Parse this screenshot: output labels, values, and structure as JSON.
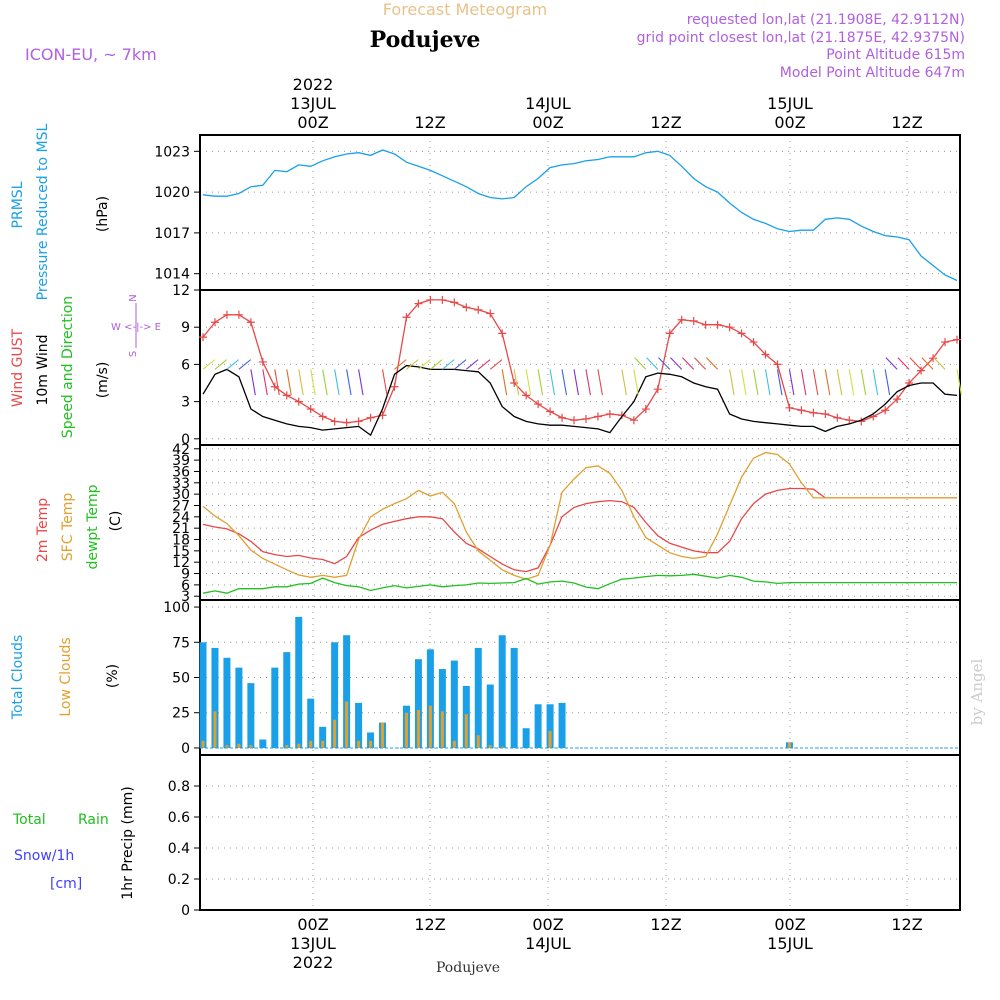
{
  "header": {
    "title": "Forecast Meteogram",
    "location": "Podujeve",
    "model": "ICON-EU, ~ 7km",
    "requested": "requested lon,lat (21.1908E, 42.9112N)",
    "gridpoint": "grid point closest lon,lat (21.1875E, 42.9375N)",
    "point_altitude": "Point Altitude 615m",
    "model_altitude": "Model Point Altitude 647m",
    "footer_location": "Podujeve",
    "watermark": "by Angel",
    "colors": {
      "title": "#e8c28a",
      "model": "#b060e0",
      "pressure": "#1aa0e8",
      "gust": "#e84848",
      "wind": "#000000",
      "dir": "#20c020",
      "sfc": "#e0a030",
      "temp": "#e84848",
      "dew": "#20c020",
      "total_cloud": "#1aa0e8",
      "low_cloud": "#e0a030",
      "rain": "#20c020",
      "snow": "#4040ff"
    }
  },
  "time_axis": {
    "top_labels": [
      {
        "pos": 0.15,
        "lines": [
          "2022",
          "13JUL",
          "00Z"
        ]
      },
      {
        "pos": 0.31,
        "lines": [
          "12Z"
        ]
      },
      {
        "pos": 0.46,
        "lines": [
          "14JUL",
          "00Z"
        ]
      },
      {
        "pos": 0.62,
        "lines": [
          "12Z"
        ]
      },
      {
        "pos": 0.78,
        "lines": [
          "15JUL",
          "00Z"
        ]
      },
      {
        "pos": 0.93,
        "lines": [
          "12Z"
        ]
      }
    ],
    "bottom_labels": [
      {
        "pos": 0.15,
        "lines": [
          "00Z",
          "13JUL",
          "2022"
        ]
      },
      {
        "pos": 0.31,
        "lines": [
          "12Z"
        ]
      },
      {
        "pos": 0.46,
        "lines": [
          "00Z",
          "14JUL"
        ]
      },
      {
        "pos": 0.62,
        "lines": [
          "12Z"
        ]
      },
      {
        "pos": 0.78,
        "lines": [
          "00Z",
          "15JUL"
        ]
      },
      {
        "pos": 0.93,
        "lines": [
          "12Z"
        ]
      }
    ]
  },
  "panels": {
    "pressure": {
      "labels": [
        "PRMSL",
        "Pressure Reduced to MSL"
      ],
      "unit": "(hPa)"
    },
    "wind": {
      "labels": [
        "Wind GUST",
        "10m Wind",
        "Speed and Direction"
      ],
      "unit": "(m/s)",
      "compass": [
        "N",
        "W <-|-> E",
        "S"
      ]
    },
    "temp": {
      "labels": [
        "2m Temp",
        "SFC Temp",
        "dewpt Temp"
      ],
      "unit": "(C)"
    },
    "cloud": {
      "labels": [
        "Total Clouds",
        "Low Clouds"
      ],
      "unit": "(%)"
    },
    "precip": {
      "labels": [
        "Total",
        "Rain",
        "Snow/1h",
        "[cm]"
      ],
      "ylabel": "1hr Precip (mm)"
    }
  },
  "chart_data": [
    {
      "type": "line",
      "name": "pressure",
      "ylim": [
        1012.8,
        1024.2
      ],
      "yticks": [
        1014,
        1017,
        1020,
        1023
      ],
      "x": [
        0,
        1,
        2,
        3,
        4,
        5,
        6,
        7,
        8,
        9,
        10,
        11,
        12,
        13,
        14,
        15,
        16,
        17,
        18,
        19,
        20,
        21,
        22,
        23,
        24,
        25,
        26,
        27,
        28,
        29,
        30,
        31,
        32,
        33,
        34,
        35,
        36,
        37,
        38,
        39,
        40,
        41,
        42,
        43,
        44,
        45,
        46,
        47,
        48,
        49,
        50,
        51,
        52,
        53,
        54,
        55,
        56,
        57,
        58,
        59,
        60,
        61,
        62,
        63
      ],
      "series": [
        {
          "values": [
            1019.8,
            1019.7,
            1019.7,
            1019.9,
            1020.4,
            1020.5,
            1021.6,
            1021.5,
            1022.0,
            1021.9,
            1022.3,
            1022.6,
            1022.8,
            1022.9,
            1022.7,
            1023.1,
            1022.8,
            1022.2,
            1021.9,
            1021.6,
            1021.2,
            1020.8,
            1020.4,
            1019.9,
            1019.6,
            1019.5,
            1019.6,
            1020.4,
            1021.0,
            1021.8,
            1022.0,
            1022.1,
            1022.3,
            1022.4,
            1022.6,
            1022.6,
            1022.6,
            1022.9,
            1023.0,
            1022.7,
            1021.9,
            1021.0,
            1020.4,
            1020.0,
            1019.2,
            1018.5,
            1018.0,
            1017.7,
            1017.3,
            1017.1,
            1017.2,
            1017.2,
            1018.0,
            1018.1,
            1018.0,
            1017.5,
            1017.1,
            1016.8,
            1016.7,
            1016.5,
            1015.3,
            1014.6,
            1013.9,
            1013.5
          ]
        }
      ]
    },
    {
      "type": "line",
      "name": "wind",
      "ylim": [
        -0.5,
        12
      ],
      "yticks": [
        0,
        3,
        6,
        9,
        12
      ],
      "x": [
        0,
        1,
        2,
        3,
        4,
        5,
        6,
        7,
        8,
        9,
        10,
        11,
        12,
        13,
        14,
        15,
        16,
        17,
        18,
        19,
        20,
        21,
        22,
        23,
        24,
        25,
        26,
        27,
        28,
        29,
        30,
        31,
        32,
        33,
        34,
        35,
        36,
        37,
        38,
        39,
        40,
        41,
        42,
        43,
        44,
        45,
        46,
        47,
        48,
        49,
        50,
        51,
        52,
        53,
        54,
        55,
        56,
        57,
        58,
        59,
        60,
        61,
        62,
        63
      ],
      "series": [
        {
          "name": "Wind GUST",
          "values": [
            8.2,
            9.4,
            10.0,
            10.0,
            9.4,
            6.2,
            4.2,
            3.5,
            3.0,
            2.4,
            1.8,
            1.4,
            1.3,
            1.4,
            1.7,
            1.9,
            4.2,
            9.8,
            10.9,
            11.2,
            11.2,
            11.0,
            10.6,
            10.4,
            10.1,
            8.5,
            4.5,
            3.5,
            2.8,
            2.2,
            1.7,
            1.5,
            1.6,
            1.8,
            2.0,
            1.9,
            1.5,
            2.4,
            4.0,
            8.5,
            9.6,
            9.5,
            9.2,
            9.2,
            9.0,
            8.5,
            7.8,
            6.8,
            6.0,
            2.5,
            2.3,
            2.1,
            2.0,
            1.7,
            1.5,
            1.4,
            1.8,
            2.3,
            3.2,
            4.5,
            5.5,
            6.5,
            7.8,
            8.0
          ]
        },
        {
          "name": "10m Wind",
          "values": [
            3.6,
            5.2,
            5.6,
            5.0,
            2.4,
            1.8,
            1.5,
            1.2,
            1.0,
            0.9,
            0.7,
            0.8,
            0.9,
            1.0,
            0.3,
            2.4,
            5.2,
            5.9,
            5.8,
            5.6,
            5.6,
            5.6,
            5.5,
            5.4,
            4.5,
            2.6,
            1.8,
            1.4,
            1.2,
            1.1,
            1.1,
            1.0,
            0.9,
            0.8,
            0.5,
            1.8,
            3.0,
            5.0,
            5.3,
            5.2,
            5.0,
            4.5,
            4.2,
            4.0,
            2.0,
            1.6,
            1.4,
            1.3,
            1.2,
            1.1,
            1.0,
            1.0,
            0.6,
            1.0,
            1.2,
            1.5,
            2.0,
            2.8,
            3.8,
            4.3,
            4.5,
            4.5,
            3.6,
            3.5
          ]
        }
      ]
    },
    {
      "type": "line",
      "name": "temperature",
      "ylim": [
        2,
        43
      ],
      "yticks": [
        3,
        6,
        9,
        12,
        15,
        18,
        21,
        24,
        27,
        30,
        33,
        36,
        39,
        42
      ],
      "x": [
        0,
        1,
        2,
        3,
        4,
        5,
        6,
        7,
        8,
        9,
        10,
        11,
        12,
        13,
        14,
        15,
        16,
        17,
        18,
        19,
        20,
        21,
        22,
        23,
        24,
        25,
        26,
        27,
        28,
        29,
        30,
        31,
        32,
        33,
        34,
        35,
        36,
        37,
        38,
        39,
        40,
        41,
        42,
        43,
        44,
        45,
        46,
        47,
        48,
        49,
        50,
        51,
        52,
        53,
        54,
        55,
        56,
        57,
        58,
        59,
        60,
        61,
        62,
        63
      ],
      "series": [
        {
          "name": "2m Temp",
          "values": [
            22.0,
            21.3,
            20.8,
            19.5,
            17.5,
            14.8,
            14.0,
            13.5,
            13.8,
            13.1,
            12.7,
            11.6,
            13.5,
            18.5,
            20.5,
            22.0,
            22.8,
            23.5,
            24.0,
            24.0,
            23.5,
            20.0,
            17.0,
            15.5,
            13.5,
            11.5,
            10.0,
            9.5,
            10.5,
            16.5,
            24.0,
            26.5,
            27.5,
            28.0,
            28.3,
            28.0,
            26.5,
            22.5,
            19.0,
            17.0,
            16.0,
            15.0,
            14.5,
            14.5,
            17.5,
            23.5,
            27.5,
            30.0,
            31.0,
            31.5,
            31.5,
            31.3,
            29.0,
            29.0,
            29.0,
            29.0,
            29.0,
            29.0,
            29.0,
            29.0,
            29.0,
            29.0,
            29.0,
            29.0
          ]
        },
        {
          "name": "SFC Temp",
          "values": [
            26.8,
            24.2,
            22.2,
            19.0,
            15.2,
            13.0,
            11.5,
            10.0,
            8.6,
            8.0,
            8.5,
            8.0,
            8.5,
            18.0,
            24.0,
            26.0,
            27.5,
            28.8,
            31.0,
            29.5,
            30.5,
            27.5,
            20.0,
            15.0,
            12.5,
            10.0,
            8.5,
            7.5,
            8.5,
            16.5,
            30.5,
            34.0,
            37.0,
            37.5,
            35.5,
            31.0,
            24.0,
            18.5,
            16.5,
            14.5,
            13.5,
            13.0,
            13.5,
            19.5,
            27.0,
            34.5,
            39.5,
            41.0,
            40.5,
            38.0,
            33.0,
            29.0,
            29.0,
            29.0,
            29.0,
            29.0,
            29.0,
            29.0,
            29.0,
            29.0,
            29.0,
            29.0,
            29.0,
            29.0
          ]
        },
        {
          "name": "dewpt Temp",
          "values": [
            3.8,
            4.4,
            3.8,
            5.0,
            5.0,
            5.0,
            5.5,
            5.5,
            6.2,
            6.4,
            7.8,
            6.6,
            5.8,
            5.5,
            4.5,
            5.2,
            5.8,
            5.2,
            5.6,
            6.0,
            5.5,
            5.8,
            6.0,
            6.5,
            6.4,
            6.5,
            6.6,
            7.7,
            6.2,
            6.8,
            7.0,
            6.5,
            5.4,
            5.0,
            6.3,
            7.5,
            7.8,
            8.2,
            8.5,
            8.4,
            8.5,
            8.8,
            8.3,
            7.8,
            8.5,
            8.0,
            7.0,
            6.8,
            6.4,
            6.6,
            6.6,
            6.6,
            6.6,
            6.6,
            6.6,
            6.6,
            6.6,
            6.6,
            6.6,
            6.6,
            6.6,
            6.6,
            6.6,
            6.6
          ]
        }
      ]
    },
    {
      "type": "bar",
      "name": "clouds",
      "ylim": [
        -5,
        105
      ],
      "yticks": [
        0,
        25,
        50,
        75,
        100
      ],
      "x": [
        0,
        1,
        2,
        3,
        4,
        5,
        6,
        7,
        8,
        9,
        10,
        11,
        12,
        13,
        14,
        15,
        16,
        17,
        18,
        19,
        20,
        21,
        22,
        23,
        24,
        25,
        26,
        27,
        28,
        29,
        30,
        31,
        32,
        33,
        34,
        35,
        36,
        37,
        38,
        39,
        40,
        41,
        42,
        43,
        44,
        45,
        46,
        47,
        48,
        49,
        50,
        51,
        52,
        53,
        54,
        55,
        56,
        57,
        58,
        59,
        60,
        61,
        62,
        63
      ],
      "series": [
        {
          "name": "Total Clouds",
          "values": [
            75,
            71,
            64,
            57,
            46,
            6,
            57,
            68,
            93,
            35,
            15,
            75,
            80,
            32,
            11,
            18,
            0,
            30,
            63,
            70,
            56,
            62,
            44,
            71,
            45,
            80,
            71,
            14,
            31,
            31,
            32,
            0,
            0,
            0,
            0,
            0,
            0,
            0,
            0,
            0,
            0,
            0,
            0,
            0,
            0,
            0,
            0,
            0,
            0,
            4,
            0,
            0,
            0,
            0,
            0,
            0,
            0,
            0,
            0,
            0,
            0,
            0,
            0,
            0
          ]
        },
        {
          "name": "Low Clouds",
          "values": [
            5,
            26,
            2,
            3,
            2,
            0,
            0,
            2,
            3,
            5,
            5,
            20,
            33,
            5,
            5,
            18,
            0,
            25,
            27,
            30,
            26,
            5,
            24,
            9,
            2,
            1,
            0,
            0,
            0,
            12,
            0,
            0,
            0,
            0,
            0,
            0,
            0,
            0,
            0,
            0,
            0,
            0,
            0,
            0,
            0,
            0,
            0,
            0,
            0,
            4,
            0,
            0,
            0,
            0,
            0,
            0,
            0,
            0,
            0,
            0,
            0,
            0,
            0,
            0
          ]
        }
      ]
    },
    {
      "type": "bar",
      "name": "precipitation",
      "ylim": [
        0,
        1
      ],
      "yticks": [
        0,
        0.2,
        0.4,
        0.6,
        0.8
      ],
      "ytick_labels": [
        "0",
        "0.2",
        "0.4",
        "0.6",
        "0.8"
      ],
      "series": [
        {
          "name": "1hr Precip",
          "values": []
        }
      ]
    }
  ]
}
